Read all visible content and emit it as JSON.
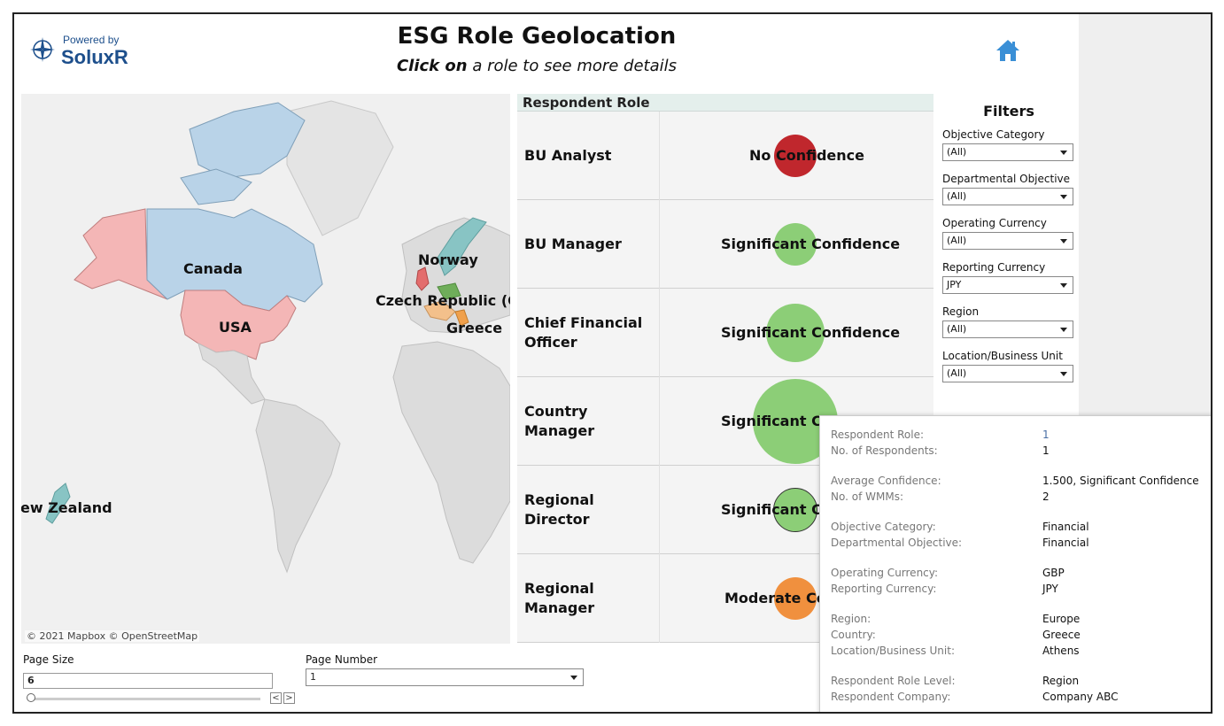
{
  "header": {
    "powered_by": "Powered by",
    "brand": "SoluxR",
    "title": "ESG Role Geolocation",
    "subtitle_bold": "Click on",
    "subtitle_rest": " a role to see more details"
  },
  "map": {
    "labels": {
      "canada": "Canada",
      "usa": "USA",
      "norway": "Norway",
      "czech": "Czech Republic (Czec",
      "greece": "Greece",
      "new_zealand": "ew Zealand"
    },
    "attribution": "© 2021 Mapbox  © OpenStreetMap",
    "colors": {
      "canada": "#b9d3e8",
      "usa": "#f4b6b6",
      "alaska": "#f4b6b6",
      "land": "#dcdcdc",
      "water": "#f0f0f0"
    }
  },
  "roles": {
    "header": "Respondent Role",
    "items": [
      {
        "name": "BU Analyst",
        "confidence_text": "No Confidence",
        "bubble_color": "#c0272d"
      },
      {
        "name": "BU Manager",
        "confidence_text": "Significant Confidence",
        "bubble_color": "#8cce77"
      },
      {
        "name": "Chief Financial Officer",
        "confidence_text": "Significant Confidence",
        "bubble_color": "#8cce77"
      },
      {
        "name": "Country Manager",
        "confidence_text": "Significant Cor",
        "bubble_color": "#8cce77"
      },
      {
        "name": "Regional Director",
        "confidence_text": "Significant Cor",
        "bubble_color": "#8cce77"
      },
      {
        "name": "Regional Manager",
        "confidence_text": "Moderate Con",
        "bubble_color": "#f0903e"
      }
    ]
  },
  "filters": {
    "title": "Filters",
    "items": [
      {
        "label": "Objective Category",
        "value": "(All)"
      },
      {
        "label": "Departmental Objective",
        "value": "(All)"
      },
      {
        "label": "Operating Currency",
        "value": "(All)"
      },
      {
        "label": "Reporting Currency",
        "value": "JPY"
      },
      {
        "label": "Region",
        "value": "(All)"
      },
      {
        "label": "Location/Business Unit",
        "value": "(All)"
      }
    ]
  },
  "paging": {
    "page_size_label": "Page Size",
    "page_size_value": "6",
    "page_number_label": "Page Number",
    "page_number_value": "1",
    "prev": "<",
    "next": ">"
  },
  "tooltip": {
    "groups": [
      [
        {
          "key": "Respondent Role:",
          "value": "1",
          "link": true
        },
        {
          "key": "No. of Respondents:",
          "value": "1"
        }
      ],
      [
        {
          "key": "Average Confidence:",
          "value": "1.500, Significant Confidence"
        },
        {
          "key": "No. of WMMs:",
          "value": "2"
        }
      ],
      [
        {
          "key": "Objective Category:",
          "value": "Financial"
        },
        {
          "key": "Departmental Objective:",
          "value": "Financial"
        }
      ],
      [
        {
          "key": "Operating Currency:",
          "value": "GBP"
        },
        {
          "key": "Reporting Currency:",
          "value": "JPY"
        }
      ],
      [
        {
          "key": "Region:",
          "value": "Europe"
        },
        {
          "key": "Country:",
          "value": "Greece"
        },
        {
          "key": "Location/Business Unit:",
          "value": "Athens"
        }
      ],
      [
        {
          "key": "Respondent Role Level:",
          "value": "Region"
        },
        {
          "key": "Respondent Company:",
          "value": "Company ABC"
        }
      ]
    ]
  }
}
